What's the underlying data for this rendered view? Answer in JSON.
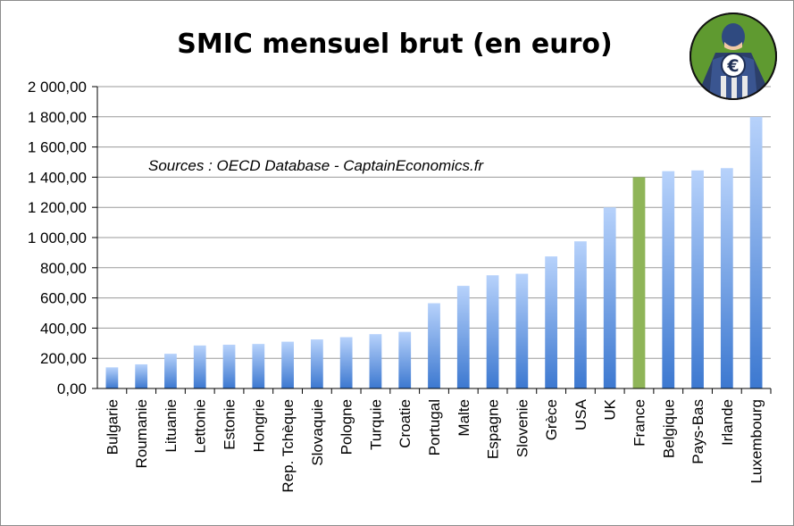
{
  "chart_data": {
    "type": "bar",
    "title": "SMIC mensuel brut (en euro)",
    "annotation": "Sources : OECD Database - CaptainEconomics.fr",
    "xlabel": "",
    "ylabel": "",
    "ylim": [
      0,
      2000
    ],
    "yticks": [
      "0,00",
      "200,00",
      "400,00",
      "600,00",
      "800,00",
      "1 000,00",
      "1 200,00",
      "1 400,00",
      "1 600,00",
      "1 800,00",
      "2 000,00"
    ],
    "ytick_values": [
      0,
      200,
      400,
      600,
      800,
      1000,
      1200,
      1400,
      1600,
      1800,
      2000
    ],
    "grid": true,
    "categories": [
      "Bulgarie",
      "Roumanie",
      "Lituanie",
      "Lettonie",
      "Estonie",
      "Hongrie",
      "Rep. Tchèque",
      "Slovaquie",
      "Pologne",
      "Turquie",
      "Croatie",
      "Portugal",
      "Malte",
      "Espagne",
      "Slovenie",
      "Grèce",
      "USA",
      "UK",
      "France",
      "Belgique",
      "Pays-Bas",
      "Irlande",
      "Luxembourg"
    ],
    "values": [
      140,
      160,
      230,
      285,
      290,
      295,
      310,
      325,
      340,
      360,
      375,
      565,
      680,
      750,
      760,
      875,
      975,
      1200,
      1400,
      1440,
      1445,
      1460,
      1800
    ],
    "highlight": "France",
    "colors": {
      "bar_top": "#b7d2fb",
      "bar_bottom": "#3c78d0",
      "highlight": "#8fb558",
      "grid": "#9a9a9a"
    }
  },
  "logo": {
    "icon": "captain-economics-logo",
    "symbol": "€"
  }
}
